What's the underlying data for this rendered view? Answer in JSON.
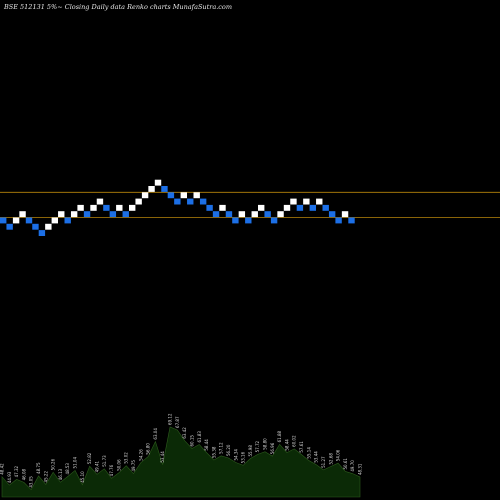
{
  "header": "BSE 512131 5%~  Closing Daily data  Renko  charts MunafaSutra.com",
  "colors": {
    "background": "#000000",
    "up_brick": "#ffffff",
    "down_brick": "#1c6fe6",
    "level_line": "#b8860b",
    "volume_fill": "#0b2a06",
    "volume_line": "#2c5a1c"
  },
  "chart_data": {
    "type": "renko",
    "title": "BSE 512131 5%~  Closing Daily data  Renko  charts MunafaSutra.com",
    "bricks": [
      {
        "dir": "down",
        "level": 0
      },
      {
        "dir": "down",
        "level": -1
      },
      {
        "dir": "up",
        "level": 0
      },
      {
        "dir": "up",
        "level": 1
      },
      {
        "dir": "down",
        "level": 0
      },
      {
        "dir": "down",
        "level": -1
      },
      {
        "dir": "down",
        "level": -2
      },
      {
        "dir": "up",
        "level": -1
      },
      {
        "dir": "up",
        "level": 0
      },
      {
        "dir": "up",
        "level": 1
      },
      {
        "dir": "down",
        "level": 0
      },
      {
        "dir": "up",
        "level": 1
      },
      {
        "dir": "up",
        "level": 2
      },
      {
        "dir": "down",
        "level": 1
      },
      {
        "dir": "up",
        "level": 2
      },
      {
        "dir": "up",
        "level": 3
      },
      {
        "dir": "down",
        "level": 2
      },
      {
        "dir": "down",
        "level": 1
      },
      {
        "dir": "up",
        "level": 2
      },
      {
        "dir": "down",
        "level": 1
      },
      {
        "dir": "up",
        "level": 2
      },
      {
        "dir": "up",
        "level": 3
      },
      {
        "dir": "up",
        "level": 4
      },
      {
        "dir": "up",
        "level": 5
      },
      {
        "dir": "up",
        "level": 6
      },
      {
        "dir": "down",
        "level": 5
      },
      {
        "dir": "down",
        "level": 4
      },
      {
        "dir": "down",
        "level": 3
      },
      {
        "dir": "up",
        "level": 4
      },
      {
        "dir": "down",
        "level": 3
      },
      {
        "dir": "up",
        "level": 4
      },
      {
        "dir": "down",
        "level": 3
      },
      {
        "dir": "down",
        "level": 2
      },
      {
        "dir": "down",
        "level": 1
      },
      {
        "dir": "up",
        "level": 2
      },
      {
        "dir": "down",
        "level": 1
      },
      {
        "dir": "down",
        "level": 0
      },
      {
        "dir": "up",
        "level": 1
      },
      {
        "dir": "down",
        "level": 0
      },
      {
        "dir": "up",
        "level": 1
      },
      {
        "dir": "up",
        "level": 2
      },
      {
        "dir": "down",
        "level": 1
      },
      {
        "dir": "down",
        "level": 0
      },
      {
        "dir": "up",
        "level": 1
      },
      {
        "dir": "up",
        "level": 2
      },
      {
        "dir": "up",
        "level": 3
      },
      {
        "dir": "down",
        "level": 2
      },
      {
        "dir": "up",
        "level": 3
      },
      {
        "dir": "down",
        "level": 2
      },
      {
        "dir": "up",
        "level": 3
      },
      {
        "dir": "down",
        "level": 2
      },
      {
        "dir": "down",
        "level": 1
      },
      {
        "dir": "down",
        "level": 0
      },
      {
        "dir": "up",
        "level": 1
      },
      {
        "dir": "down",
        "level": 0
      }
    ],
    "reference_levels": [
      5,
      1
    ],
    "volume_labels": [
      "48.42",
      "44.93",
      "47.32",
      "46.08",
      "43.05",
      "48.75",
      "45.22",
      "50.26",
      "46.13",
      "48.53",
      "51.04",
      "45.10",
      "52.82",
      "49.41",
      "51.73",
      "47.76",
      "50.06",
      "53.02",
      "49.75",
      "54.26",
      "56.80",
      "63.04",
      "53.44",
      "69.12",
      "67.87",
      "63.42",
      "60.15",
      "61.83",
      "58.44",
      "55.38",
      "57.12",
      "56.20",
      "54.34",
      "53.16",
      "55.98",
      "57.72",
      "58.80",
      "56.96",
      "61.88",
      "58.44",
      "60.02",
      "57.61",
      "55.14",
      "53.44",
      "51.27",
      "52.68",
      "54.06",
      "50.61",
      "49.70",
      "48.31"
    ]
  }
}
